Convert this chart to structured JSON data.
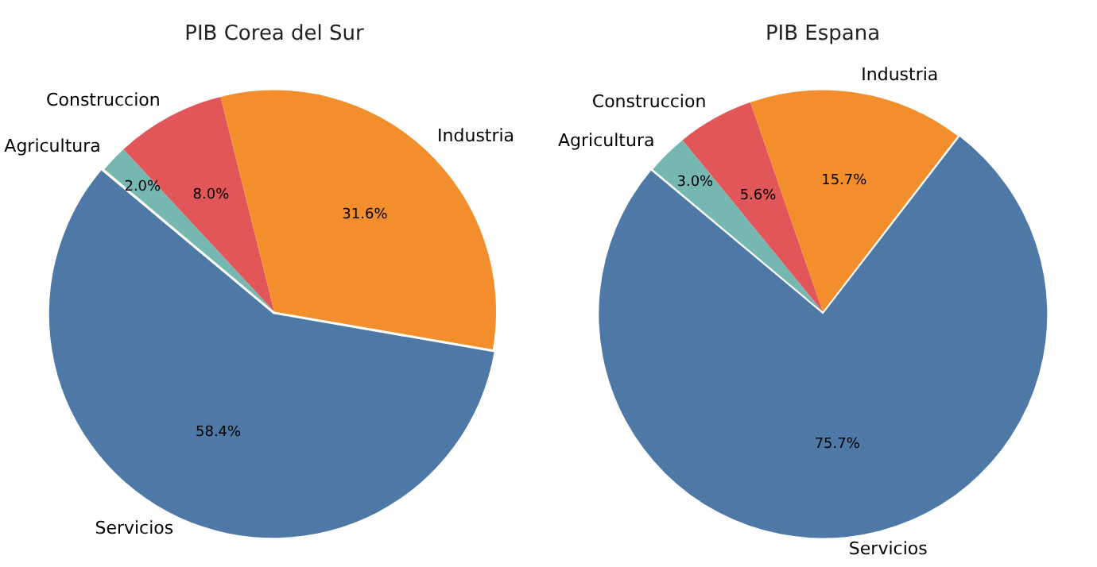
{
  "chart_data": [
    {
      "type": "pie",
      "title": "PIB Corea del Sur",
      "categories": [
        "Agricultura",
        "Construccion",
        "Industria",
        "Servicios"
      ],
      "values": [
        2.0,
        8.0,
        31.6,
        58.4
      ],
      "colors": [
        "#76b7b2",
        "#e15759",
        "#f28e2b",
        "#4e79a7"
      ],
      "value_labels": [
        "2.0%",
        "8.0%",
        "31.6%",
        "58.4%"
      ]
    },
    {
      "type": "pie",
      "title": "PIB Espana",
      "categories": [
        "Agricultura",
        "Construccion",
        "Industria",
        "Servicios"
      ],
      "values": [
        3.0,
        5.6,
        15.7,
        75.7
      ],
      "colors": [
        "#76b7b2",
        "#e15759",
        "#f28e2b",
        "#4e79a7"
      ],
      "value_labels": [
        "3.0%",
        "5.6%",
        "15.7%",
        "75.7%"
      ]
    }
  ]
}
